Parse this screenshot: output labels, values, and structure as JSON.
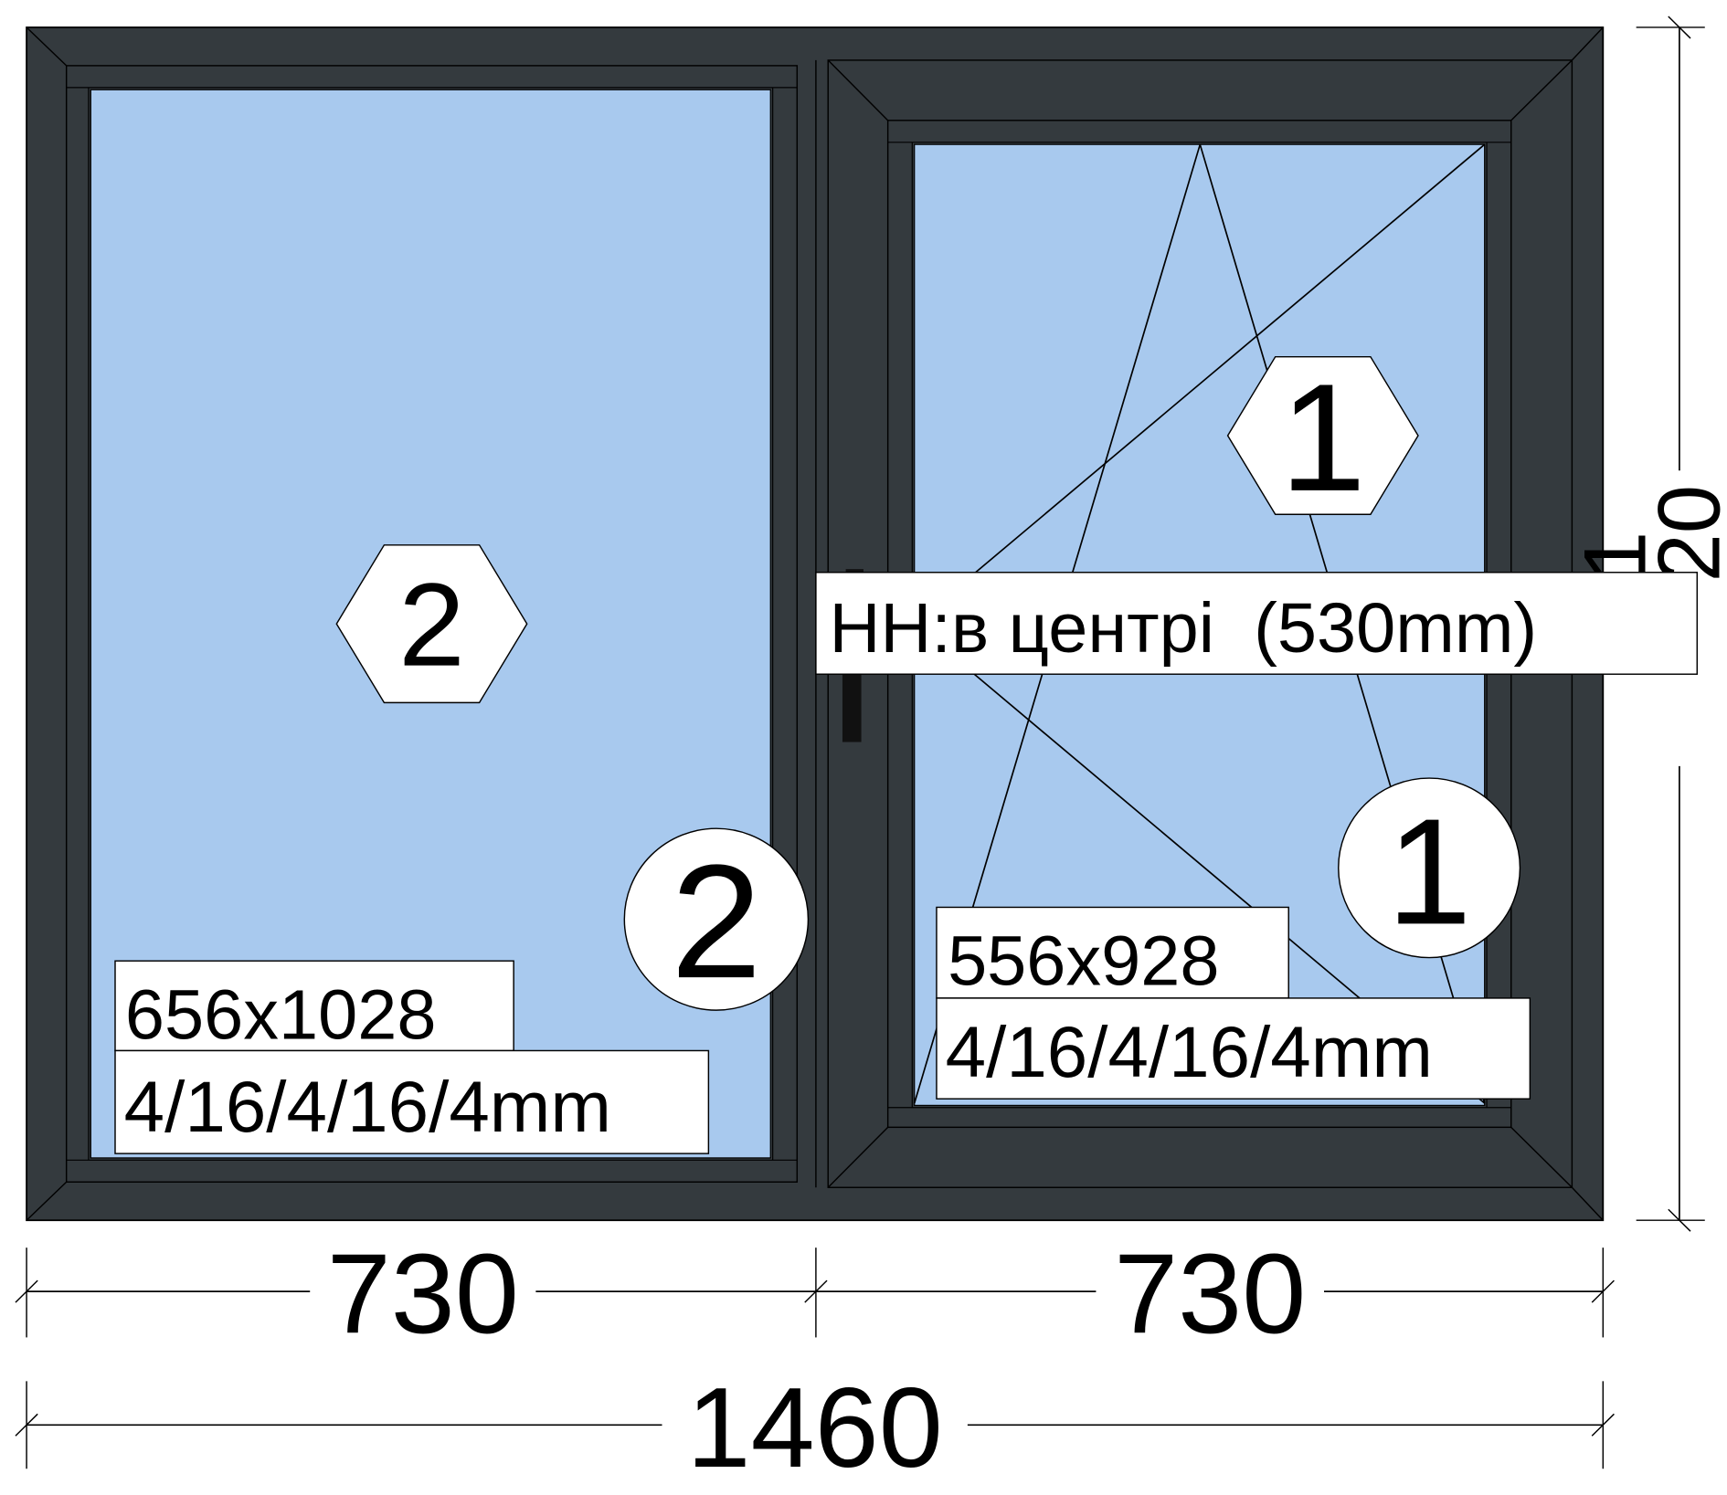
{
  "colors": {
    "frame": "#343a3e",
    "frame_line": "#000000",
    "glass": "#a8c9ee",
    "label_bg": "#ffffff",
    "line": "#000000",
    "text": "#000000"
  },
  "dimensions": {
    "overall_width": "1460",
    "left_section_width": "730",
    "right_section_width": "730",
    "height_visible_part_top": "1",
    "height_visible_part_bottom": "20"
  },
  "fixed_pane": {
    "glass_size": "656x1028",
    "glass_unit": "4/16/4/16/4mm",
    "glass_marker": "2",
    "profile_marker": "2"
  },
  "opening_sash": {
    "glass_size": "556x928",
    "glass_unit": "4/16/4/16/4mm",
    "glass_marker": "1",
    "profile_marker": "1",
    "opening_type": "tilt-and-turn",
    "handle_height_label": "НН:в центрі  (530mm)"
  },
  "icons": {
    "sash_handle": "handle-icon",
    "opening_indicator": "tilt-turn-opening-lines"
  }
}
